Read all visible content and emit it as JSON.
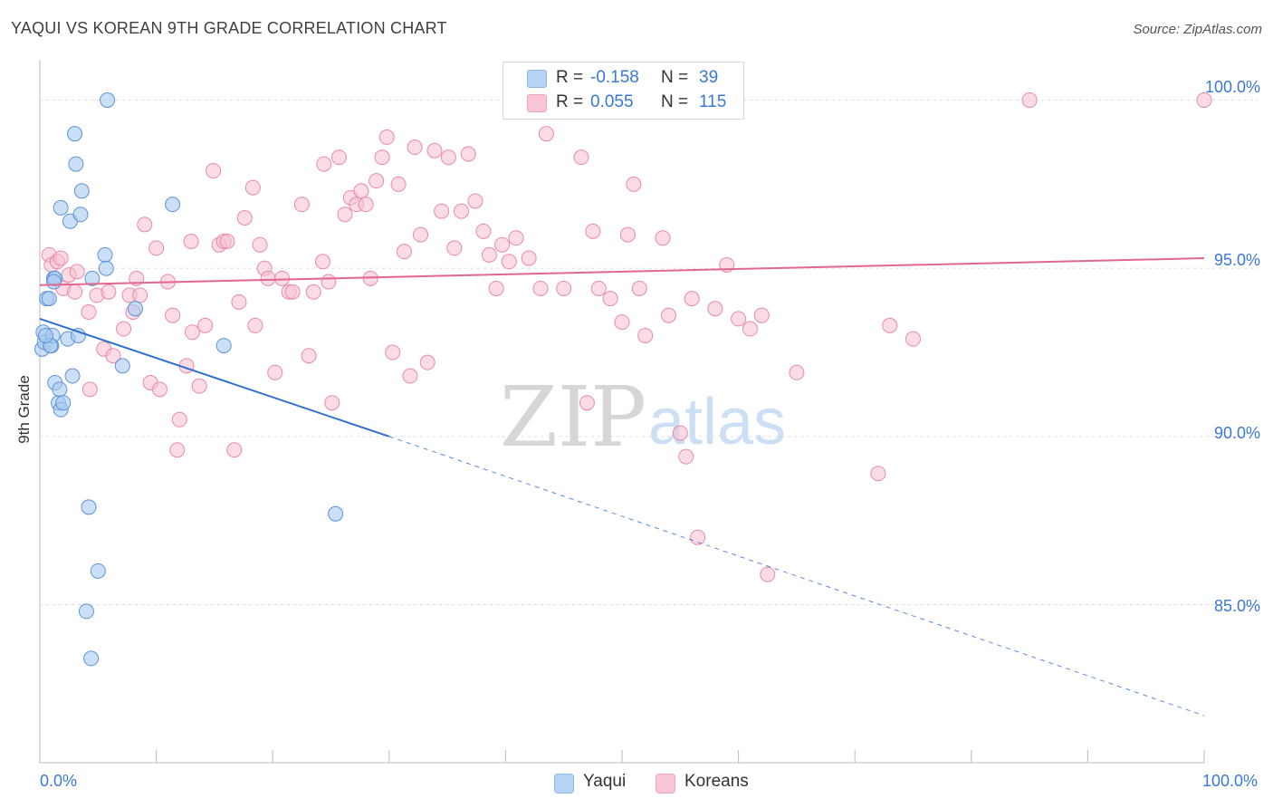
{
  "header": {
    "title": "YAQUI VS KOREAN 9TH GRADE CORRELATION CHART",
    "source": "Source: ZipAtlas.com"
  },
  "legend": {
    "rows": [
      {
        "r_label": "R =",
        "r_value": "-0.158",
        "n_label": "N =",
        "n_value": "39",
        "color": "#8db8ec"
      },
      {
        "r_label": "R =",
        "r_value": "0.055",
        "n_label": "N =",
        "n_value": "115",
        "color": "#f3a3bd"
      }
    ]
  },
  "bottom_legend": {
    "yaqui": "Yaqui",
    "koreans": "Koreans"
  },
  "watermark": {
    "zip": "ZIP",
    "atlas": "atlas"
  },
  "colors": {
    "yaqui_fill": "#a9c9f1",
    "yaqui_stroke": "#5d93d8",
    "yaqui_line": "#2f6fd0",
    "korean_fill": "#f7bfd0",
    "korean_stroke": "#e88aa8",
    "korean_line": "#e2678f",
    "tick_label": "#3a78d4",
    "grid": "#dddddd"
  },
  "chart_data": {
    "type": "scatter",
    "title": "YAQUI VS KOREAN 9TH GRADE CORRELATION CHART",
    "xlabel": "",
    "ylabel": "9th Grade",
    "xlim": [
      0,
      100
    ],
    "ylim": [
      80.3,
      101.2
    ],
    "x_tick_labels": [
      "0.0%",
      "100.0%"
    ],
    "y_ticks": [
      85,
      90,
      95,
      100
    ],
    "y_tick_labels": [
      "85.0%",
      "90.0%",
      "95.0%",
      "100.0%"
    ],
    "grid": true,
    "legend_position": "top-center",
    "series": [
      {
        "name": "Yaqui",
        "r": -0.158,
        "n": 39,
        "trend": {
          "x0": 0,
          "y0": 93.5,
          "x1": 30,
          "y1": 90.0,
          "dashed_to_x": 100,
          "dashed_to_y": 81.7
        },
        "points": [
          [
            0.2,
            92.6
          ],
          [
            0.3,
            93.1
          ],
          [
            0.4,
            92.8
          ],
          [
            0.6,
            94.1
          ],
          [
            0.8,
            94.1
          ],
          [
            1.0,
            92.7
          ],
          [
            1.1,
            93.0
          ],
          [
            1.2,
            94.7
          ],
          [
            1.3,
            94.7
          ],
          [
            1.3,
            91.6
          ],
          [
            1.6,
            91.0
          ],
          [
            1.7,
            91.4
          ],
          [
            1.8,
            90.8
          ],
          [
            2.0,
            91.0
          ],
          [
            2.4,
            92.9
          ],
          [
            2.6,
            96.4
          ],
          [
            2.8,
            91.8
          ],
          [
            3.0,
            99.0
          ],
          [
            3.1,
            98.1
          ],
          [
            1.8,
            96.8
          ],
          [
            3.5,
            96.6
          ],
          [
            3.6,
            97.3
          ],
          [
            3.3,
            93.0
          ],
          [
            4.2,
            87.9
          ],
          [
            4.0,
            84.8
          ],
          [
            4.4,
            83.4
          ],
          [
            4.5,
            94.7
          ],
          [
            5.0,
            86.0
          ],
          [
            5.6,
            95.4
          ],
          [
            5.7,
            95.0
          ],
          [
            5.8,
            100.0
          ],
          [
            7.1,
            92.1
          ],
          [
            8.2,
            93.8
          ],
          [
            11.4,
            96.9
          ],
          [
            15.8,
            92.7
          ],
          [
            25.4,
            87.7
          ],
          [
            1.2,
            94.6
          ],
          [
            0.9,
            92.7
          ],
          [
            0.5,
            93.0
          ]
        ]
      },
      {
        "name": "Koreans",
        "r": 0.055,
        "n": 115,
        "trend": {
          "x0": 0,
          "y0": 94.5,
          "x1": 100,
          "y1": 95.3
        },
        "points": [
          [
            0.8,
            95.4
          ],
          [
            1.0,
            95.1
          ],
          [
            1.5,
            95.2
          ],
          [
            1.8,
            95.3
          ],
          [
            2.0,
            94.4
          ],
          [
            2.5,
            94.8
          ],
          [
            3.0,
            94.3
          ],
          [
            3.2,
            94.9
          ],
          [
            4.3,
            91.4
          ],
          [
            4.2,
            93.7
          ],
          [
            4.9,
            94.2
          ],
          [
            5.5,
            92.6
          ],
          [
            5.9,
            94.3
          ],
          [
            6.3,
            92.4
          ],
          [
            7.2,
            93.2
          ],
          [
            7.7,
            94.2
          ],
          [
            8.0,
            93.7
          ],
          [
            8.3,
            94.7
          ],
          [
            8.6,
            94.2
          ],
          [
            9.5,
            91.6
          ],
          [
            10.0,
            95.6
          ],
          [
            10.3,
            91.4
          ],
          [
            11.0,
            94.6
          ],
          [
            11.4,
            93.6
          ],
          [
            11.8,
            89.6
          ],
          [
            12.0,
            90.5
          ],
          [
            12.6,
            92.1
          ],
          [
            13.1,
            93.1
          ],
          [
            13.7,
            91.5
          ],
          [
            14.2,
            93.3
          ],
          [
            14.9,
            97.9
          ],
          [
            15.4,
            95.7
          ],
          [
            15.8,
            95.8
          ],
          [
            16.1,
            95.8
          ],
          [
            16.7,
            89.6
          ],
          [
            17.1,
            94.0
          ],
          [
            17.6,
            96.5
          ],
          [
            18.3,
            97.4
          ],
          [
            18.9,
            95.7
          ],
          [
            19.3,
            95.0
          ],
          [
            19.6,
            94.7
          ],
          [
            20.2,
            91.9
          ],
          [
            20.8,
            94.7
          ],
          [
            21.4,
            94.3
          ],
          [
            21.7,
            94.3
          ],
          [
            22.5,
            96.9
          ],
          [
            23.1,
            92.4
          ],
          [
            23.5,
            94.3
          ],
          [
            24.3,
            95.2
          ],
          [
            24.4,
            98.1
          ],
          [
            25.1,
            91.0
          ],
          [
            25.7,
            98.3
          ],
          [
            26.2,
            96.6
          ],
          [
            26.7,
            97.1
          ],
          [
            27.2,
            96.9
          ],
          [
            27.6,
            97.3
          ],
          [
            28.0,
            96.9
          ],
          [
            28.4,
            94.7
          ],
          [
            28.9,
            97.6
          ],
          [
            29.4,
            98.3
          ],
          [
            29.8,
            98.9
          ],
          [
            30.3,
            92.5
          ],
          [
            30.8,
            97.5
          ],
          [
            31.3,
            95.5
          ],
          [
            31.8,
            91.8
          ],
          [
            32.2,
            98.6
          ],
          [
            32.7,
            96.0
          ],
          [
            33.3,
            92.2
          ],
          [
            33.9,
            98.5
          ],
          [
            34.5,
            96.7
          ],
          [
            35.1,
            98.3
          ],
          [
            35.6,
            95.6
          ],
          [
            36.2,
            96.7
          ],
          [
            36.8,
            98.4
          ],
          [
            37.4,
            97.0
          ],
          [
            38.1,
            96.1
          ],
          [
            38.6,
            95.4
          ],
          [
            39.2,
            94.4
          ],
          [
            39.7,
            95.7
          ],
          [
            40.3,
            95.2
          ],
          [
            40.9,
            95.9
          ],
          [
            42.0,
            95.3
          ],
          [
            43.0,
            94.4
          ],
          [
            45.0,
            94.4
          ],
          [
            46.5,
            98.3
          ],
          [
            47.0,
            91.0
          ],
          [
            47.5,
            96.1
          ],
          [
            48.0,
            94.4
          ],
          [
            49.0,
            94.1
          ],
          [
            50.0,
            93.4
          ],
          [
            50.5,
            96.0
          ],
          [
            51.0,
            97.5
          ],
          [
            51.5,
            94.4
          ],
          [
            52.0,
            93.0
          ],
          [
            53.5,
            95.9
          ],
          [
            54.0,
            93.6
          ],
          [
            55.0,
            90.1
          ],
          [
            55.5,
            89.4
          ],
          [
            56.0,
            94.1
          ],
          [
            58.0,
            93.8
          ],
          [
            59.0,
            95.1
          ],
          [
            60.0,
            93.5
          ],
          [
            61.0,
            93.2
          ],
          [
            62.0,
            93.6
          ],
          [
            65.0,
            91.9
          ],
          [
            72.0,
            88.9
          ],
          [
            73.0,
            93.3
          ],
          [
            75.0,
            92.9
          ],
          [
            56.5,
            87.0
          ],
          [
            62.5,
            85.9
          ],
          [
            85.0,
            100.0
          ],
          [
            100.0,
            100.0
          ],
          [
            41.0,
            100.0
          ],
          [
            43.5,
            99.0
          ],
          [
            9.0,
            96.3
          ],
          [
            13.0,
            95.8
          ],
          [
            18.5,
            93.3
          ],
          [
            24.8,
            94.6
          ]
        ]
      }
    ]
  }
}
